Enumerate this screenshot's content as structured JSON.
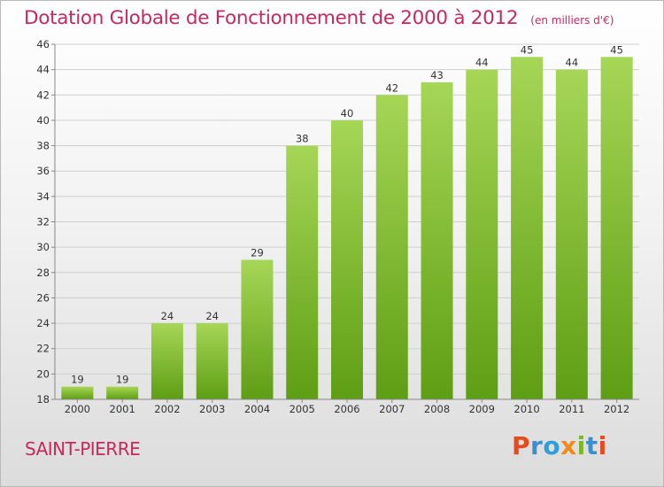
{
  "chart_data": {
    "type": "bar",
    "title": "Dotation Globale de Fonctionnement de 2000 à 2012",
    "subtitle": "(en milliers d'€)",
    "categories": [
      "2000",
      "2001",
      "2002",
      "2003",
      "2004",
      "2005",
      "2006",
      "2007",
      "2008",
      "2009",
      "2010",
      "2011",
      "2012"
    ],
    "values": [
      19,
      19,
      24,
      24,
      29,
      38,
      40,
      42,
      43,
      44,
      45,
      44,
      45
    ],
    "ylim": [
      18,
      46
    ],
    "yticks": [
      18,
      20,
      22,
      24,
      26,
      28,
      30,
      32,
      34,
      36,
      38,
      40,
      42,
      44,
      46
    ],
    "grid": true,
    "colors": {
      "bar_light": "#a6d656",
      "bar_dark": "#5e9e14",
      "grid": "#cfcfcf",
      "axis": "#888888",
      "text": "#333333",
      "accent": "#c8285c"
    }
  },
  "footer": {
    "commune": "SAINT-PIERRE"
  },
  "logo": {
    "text": "Proxiti",
    "letter_colors": [
      "#e84a1b",
      "#3a8fd0",
      "#2e9fd8",
      "#f08a1b",
      "#7ab825",
      "#3a8fd0",
      "#e84a1b"
    ]
  }
}
